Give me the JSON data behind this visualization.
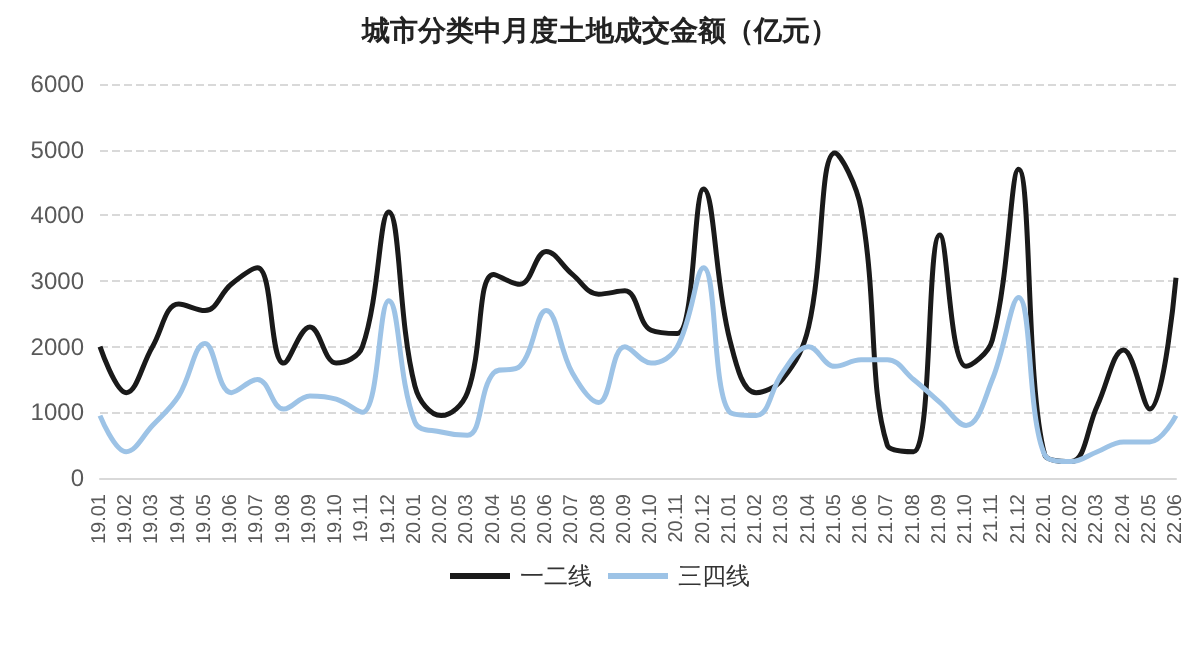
{
  "chart_data": {
    "type": "line",
    "title": "城市分类中月度土地成交金额（亿元）",
    "categories": [
      "19.01",
      "19.02",
      "19.03",
      "19.04",
      "19.05",
      "19.06",
      "19.07",
      "19.08",
      "19.09",
      "19.10",
      "19.11",
      "19.12",
      "20.01",
      "20.02",
      "20.03",
      "20.04",
      "20.05",
      "20.06",
      "20.07",
      "20.08",
      "20.09",
      "20.10",
      "20.11",
      "20.12",
      "21.01",
      "21.02",
      "21.03",
      "21.04",
      "21.05",
      "21.06",
      "21.07",
      "21.08",
      "21.09",
      "21.10",
      "21.11",
      "21.12",
      "22.01",
      "22.02",
      "22.03",
      "22.04",
      "22.05",
      "22.06"
    ],
    "series": [
      {
        "name": "一二线",
        "color": "#1a1a1a",
        "values": [
          2000,
          1300,
          2000,
          2650,
          2550,
          2950,
          3200,
          1750,
          2300,
          1750,
          2000,
          4050,
          1400,
          950,
          1300,
          3100,
          2950,
          3450,
          3100,
          2800,
          2850,
          2250,
          2200,
          4400,
          2100,
          1300,
          1500,
          2300,
          4950,
          4100,
          500,
          400,
          3700,
          1700,
          2100,
          4700,
          350,
          250,
          1100,
          1950,
          1050,
          3050
        ]
      },
      {
        "name": "三四线",
        "color": "#9dc3e6",
        "values": [
          950,
          400,
          800,
          1250,
          2050,
          1300,
          1500,
          1050,
          1250,
          1200,
          1000,
          2700,
          850,
          700,
          650,
          1600,
          1700,
          2550,
          1600,
          1150,
          2000,
          1750,
          2000,
          3200,
          1000,
          950,
          1600,
          2000,
          1700,
          1800,
          1800,
          1500,
          1150,
          800,
          1500,
          2750,
          350,
          250,
          400,
          550,
          550,
          950
        ]
      }
    ],
    "ylim": [
      0,
      6000
    ],
    "yticks": [
      0,
      1000,
      2000,
      3000,
      4000,
      5000,
      6000
    ],
    "grid": "y",
    "legend": "bottom",
    "marker": "none",
    "line_style": "solid"
  }
}
